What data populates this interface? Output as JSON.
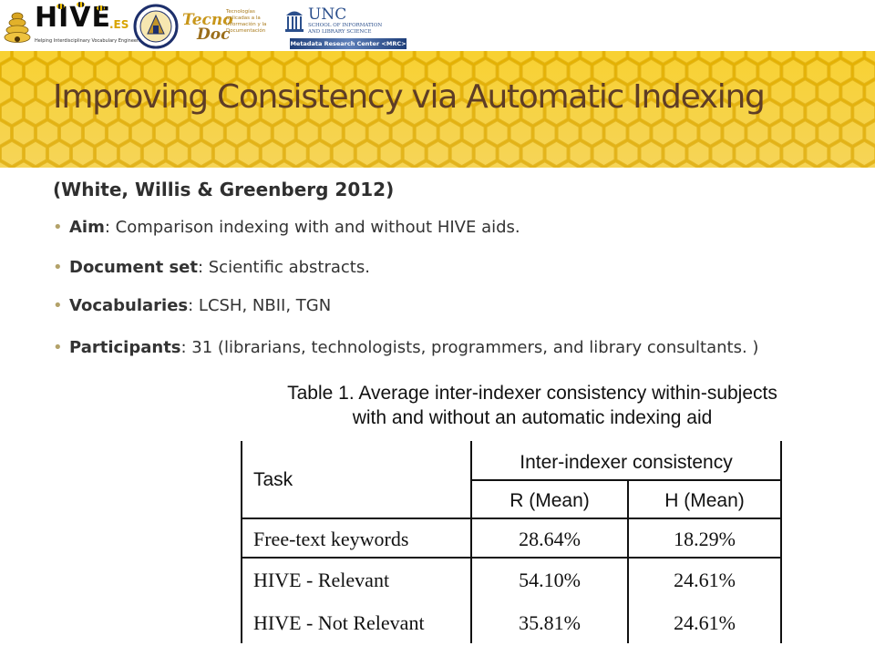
{
  "logos": {
    "hive": {
      "word": "HIVE",
      "suffix": ".ES",
      "tagline": "Helping Interdisciplinary Vocabulary Engineering"
    },
    "tecnodoc": {
      "name": "Tecno",
      "name2": "Doc",
      "desc": [
        "Tecnologías",
        "aplicadas a la",
        "Información y la",
        "Documentación"
      ]
    },
    "unc": {
      "name": "UNC",
      "sub1": "SCHOOL OF INFORMATION",
      "sub2": "AND LIBRARY SCIENCE",
      "center": "Metadata Research Center <MRC>"
    }
  },
  "slide": {
    "title": "Improving Consistency via Automatic Indexing",
    "citation": "(White, Willis & Greenberg 2012)",
    "bullets": [
      {
        "term": "Aim",
        "text": ": Comparison indexing with and without HIVE aids."
      },
      {
        "term": "Document set",
        "text": ": Scientific abstracts."
      },
      {
        "term": "Vocabularies",
        "text": ": LCSH, NBII, TGN"
      },
      {
        "term": "Participants",
        "text": ": 31 (librarians, technologists, programmers, and library consultants. )"
      }
    ]
  },
  "table": {
    "caption_line1": "Table 1. Average inter-indexer consistency within-subjects",
    "caption_line2": "with and without an automatic indexing aid",
    "task_header": "Task",
    "group_header": "Inter-indexer consistency",
    "col_r": "R (Mean)",
    "col_h": "H (Mean)",
    "rows": [
      {
        "task": "Free-text keywords",
        "r": "28.64%",
        "h": "18.29%"
      },
      {
        "task": "HIVE - Relevant",
        "r": "54.10%",
        "h": "24.61%"
      },
      {
        "task": "HIVE - Not Relevant",
        "r": "35.81%",
        "h": "24.61%"
      }
    ]
  },
  "colors": {
    "title": "#5e3d26",
    "banner": "#f4c400",
    "bullet_dot": "#b3a26a",
    "body_text": "#333333"
  }
}
